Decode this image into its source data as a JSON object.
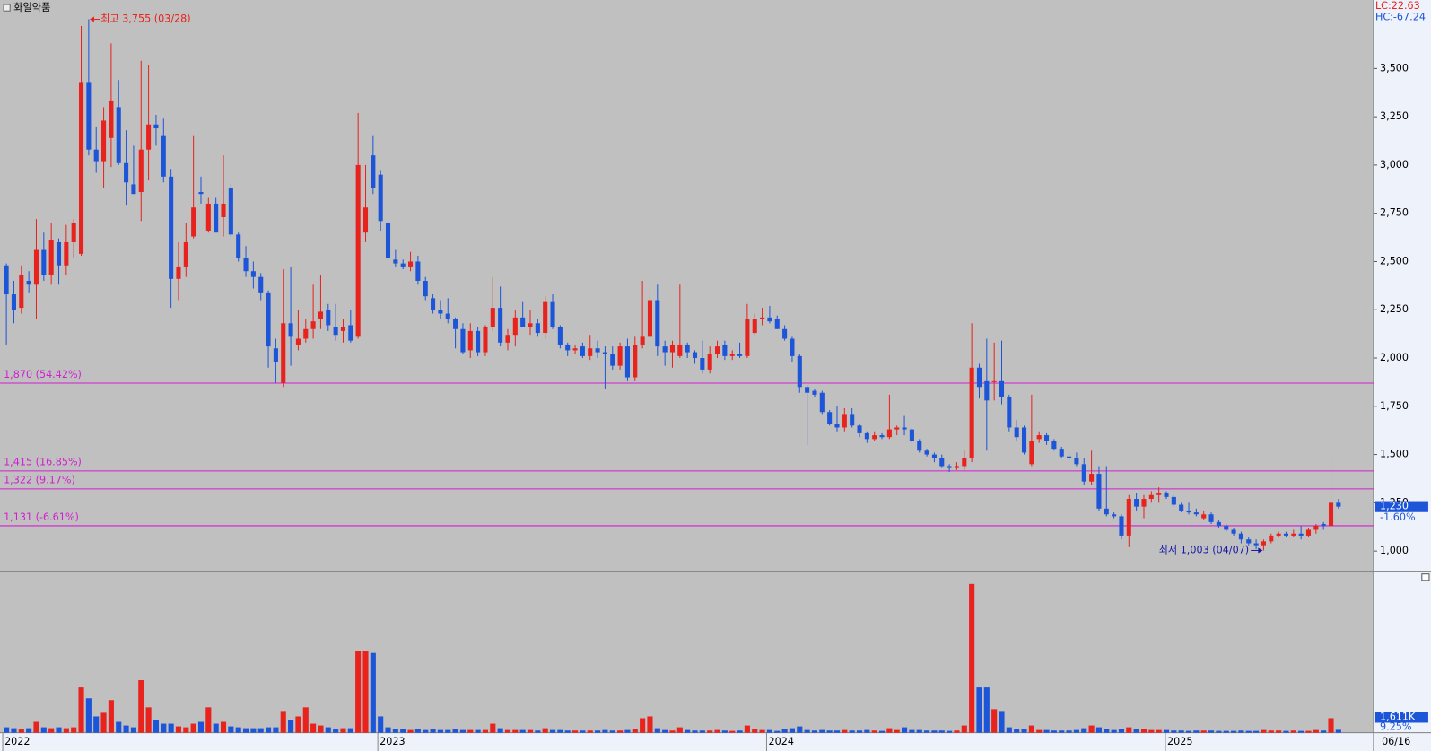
{
  "chart_data": {
    "type": "candlestick",
    "title": "화일약품",
    "indicators": [
      "LC:22.63",
      "HC:-67.24"
    ],
    "candles": [
      [
        2480,
        2490,
        2070,
        2330
      ],
      [
        2330,
        2400,
        2180,
        2250
      ],
      [
        2260,
        2480,
        2230,
        2430
      ],
      [
        2400,
        2450,
        2340,
        2380
      ],
      [
        2380,
        2720,
        2200,
        2560
      ],
      [
        2560,
        2650,
        2400,
        2430
      ],
      [
        2430,
        2700,
        2380,
        2610
      ],
      [
        2600,
        2620,
        2380,
        2480
      ],
      [
        2480,
        2690,
        2430,
        2600
      ],
      [
        2600,
        2720,
        2520,
        2700
      ],
      [
        2540,
        3720,
        2530,
        3430
      ],
      [
        3430,
        3755,
        3050,
        3080
      ],
      [
        3080,
        3200,
        2960,
        3020
      ],
      [
        3020,
        3300,
        2880,
        3230
      ],
      [
        3140,
        3630,
        2990,
        3330
      ],
      [
        3300,
        3440,
        3000,
        3010
      ],
      [
        3010,
        3180,
        2790,
        2910
      ],
      [
        2900,
        3100,
        2850,
        2850
      ],
      [
        2860,
        3540,
        2710,
        3080
      ],
      [
        3080,
        3520,
        2920,
        3210
      ],
      [
        3210,
        3260,
        3100,
        3190
      ],
      [
        3150,
        3240,
        2910,
        2940
      ],
      [
        2940,
        2980,
        2260,
        2410
      ],
      [
        2410,
        2600,
        2300,
        2470
      ],
      [
        2470,
        2700,
        2420,
        2600
      ],
      [
        2630,
        3150,
        2620,
        2780
      ],
      [
        2860,
        2940,
        2800,
        2850
      ],
      [
        2660,
        2830,
        2650,
        2800
      ],
      [
        2800,
        2830,
        2660,
        2650
      ],
      [
        2730,
        3050,
        2630,
        2800
      ],
      [
        2880,
        2900,
        2630,
        2640
      ],
      [
        2640,
        2650,
        2500,
        2520
      ],
      [
        2520,
        2580,
        2420,
        2450
      ],
      [
        2450,
        2500,
        2360,
        2420
      ],
      [
        2420,
        2440,
        2300,
        2340
      ],
      [
        2340,
        2350,
        1950,
        2060
      ],
      [
        2050,
        2100,
        1870,
        1980
      ],
      [
        1870,
        2460,
        1850,
        2180
      ],
      [
        2180,
        2470,
        1960,
        2110
      ],
      [
        2070,
        2250,
        2040,
        2100
      ],
      [
        2100,
        2200,
        2080,
        2150
      ],
      [
        2150,
        2380,
        2100,
        2190
      ],
      [
        2200,
        2430,
        2150,
        2240
      ],
      [
        2250,
        2280,
        2140,
        2170
      ],
      [
        2160,
        2280,
        2090,
        2120
      ],
      [
        2140,
        2200,
        2080,
        2160
      ],
      [
        2170,
        2250,
        2080,
        2090
      ],
      [
        2110,
        3270,
        2100,
        3000
      ],
      [
        2650,
        3000,
        2600,
        2780
      ],
      [
        3050,
        3150,
        2850,
        2880
      ],
      [
        2950,
        2970,
        2660,
        2710
      ],
      [
        2700,
        2720,
        2500,
        2520
      ],
      [
        2510,
        2560,
        2470,
        2490
      ],
      [
        2490,
        2510,
        2460,
        2470
      ],
      [
        2470,
        2550,
        2450,
        2500
      ],
      [
        2500,
        2530,
        2380,
        2400
      ],
      [
        2400,
        2420,
        2300,
        2320
      ],
      [
        2310,
        2330,
        2230,
        2250
      ],
      [
        2250,
        2300,
        2200,
        2230
      ],
      [
        2230,
        2310,
        2180,
        2200
      ],
      [
        2200,
        2210,
        2050,
        2150
      ],
      [
        2150,
        2180,
        2020,
        2030
      ],
      [
        2040,
        2180,
        2000,
        2140
      ],
      [
        2140,
        2160,
        2010,
        2030
      ],
      [
        2030,
        2170,
        2010,
        2160
      ],
      [
        2160,
        2420,
        2140,
        2260
      ],
      [
        2260,
        2370,
        2060,
        2080
      ],
      [
        2080,
        2150,
        2040,
        2120
      ],
      [
        2120,
        2250,
        2060,
        2210
      ],
      [
        2210,
        2290,
        2160,
        2160
      ],
      [
        2160,
        2250,
        2120,
        2180
      ],
      [
        2180,
        2200,
        2110,
        2130
      ],
      [
        2130,
        2320,
        2100,
        2290
      ],
      [
        2290,
        2330,
        2150,
        2160
      ],
      [
        2160,
        2170,
        2050,
        2070
      ],
      [
        2070,
        2080,
        2010,
        2040
      ],
      [
        2040,
        2070,
        2020,
        2050
      ],
      [
        2060,
        2080,
        2000,
        2010
      ],
      [
        2010,
        2120,
        1990,
        2050
      ],
      [
        2050,
        2090,
        2000,
        2030
      ],
      [
        2030,
        2060,
        1840,
        2020
      ],
      [
        2020,
        2060,
        1940,
        1960
      ],
      [
        1960,
        2080,
        1940,
        2060
      ],
      [
        2060,
        2100,
        1880,
        1900
      ],
      [
        1900,
        2110,
        1880,
        2070
      ],
      [
        2070,
        2400,
        2050,
        2110
      ],
      [
        2110,
        2370,
        2100,
        2300
      ],
      [
        2300,
        2380,
        2010,
        2060
      ],
      [
        2060,
        2090,
        1960,
        2030
      ],
      [
        2030,
        2090,
        1950,
        2070
      ],
      [
        2010,
        2380,
        2000,
        2070
      ],
      [
        2070,
        2080,
        2000,
        2030
      ],
      [
        2030,
        2040,
        1970,
        2000
      ],
      [
        2000,
        2090,
        1920,
        1940
      ],
      [
        1940,
        2060,
        1920,
        2020
      ],
      [
        2020,
        2090,
        2000,
        2060
      ],
      [
        2070,
        2090,
        1990,
        2010
      ],
      [
        2010,
        2040,
        1990,
        2020
      ],
      [
        2020,
        2080,
        2000,
        2010
      ],
      [
        2010,
        2280,
        2000,
        2200
      ],
      [
        2130,
        2230,
        2120,
        2200
      ],
      [
        2200,
        2260,
        2170,
        2210
      ],
      [
        2210,
        2270,
        2180,
        2190
      ],
      [
        2200,
        2220,
        2150,
        2150
      ],
      [
        2150,
        2170,
        2090,
        2100
      ],
      [
        2100,
        2110,
        1980,
        2010
      ],
      [
        2010,
        2020,
        1820,
        1850
      ],
      [
        1850,
        1860,
        1550,
        1820
      ],
      [
        1830,
        1840,
        1800,
        1810
      ],
      [
        1820,
        1830,
        1710,
        1720
      ],
      [
        1720,
        1730,
        1650,
        1660
      ],
      [
        1660,
        1750,
        1620,
        1640
      ],
      [
        1640,
        1740,
        1620,
        1710
      ],
      [
        1710,
        1740,
        1640,
        1650
      ],
      [
        1650,
        1660,
        1590,
        1610
      ],
      [
        1610,
        1620,
        1560,
        1580
      ],
      [
        1580,
        1620,
        1570,
        1600
      ],
      [
        1600,
        1610,
        1580,
        1590
      ],
      [
        1590,
        1810,
        1580,
        1630
      ],
      [
        1630,
        1650,
        1600,
        1640
      ],
      [
        1640,
        1700,
        1600,
        1630
      ],
      [
        1630,
        1640,
        1560,
        1570
      ],
      [
        1570,
        1580,
        1510,
        1520
      ],
      [
        1520,
        1530,
        1490,
        1500
      ],
      [
        1500,
        1510,
        1460,
        1480
      ],
      [
        1480,
        1500,
        1430,
        1440
      ],
      [
        1440,
        1450,
        1410,
        1430
      ],
      [
        1430,
        1460,
        1420,
        1440
      ],
      [
        1440,
        1520,
        1420,
        1480
      ],
      [
        1480,
        2180,
        1460,
        1950
      ],
      [
        1950,
        1970,
        1790,
        1850
      ],
      [
        1880,
        2100,
        1520,
        1780
      ],
      [
        1880,
        2080,
        1780,
        1880
      ],
      [
        1880,
        2090,
        1760,
        1800
      ],
      [
        1800,
        1810,
        1620,
        1640
      ],
      [
        1640,
        1680,
        1570,
        1590
      ],
      [
        1640,
        1650,
        1500,
        1510
      ],
      [
        1450,
        1810,
        1440,
        1570
      ],
      [
        1580,
        1620,
        1560,
        1600
      ],
      [
        1600,
        1610,
        1550,
        1570
      ],
      [
        1570,
        1580,
        1520,
        1530
      ],
      [
        1530,
        1540,
        1480,
        1490
      ],
      [
        1490,
        1510,
        1470,
        1480
      ],
      [
        1480,
        1510,
        1440,
        1450
      ],
      [
        1450,
        1480,
        1340,
        1360
      ],
      [
        1360,
        1520,
        1340,
        1400
      ],
      [
        1400,
        1440,
        1210,
        1220
      ],
      [
        1220,
        1440,
        1180,
        1190
      ],
      [
        1190,
        1200,
        1170,
        1180
      ],
      [
        1180,
        1190,
        1060,
        1080
      ],
      [
        1080,
        1290,
        1020,
        1270
      ],
      [
        1270,
        1300,
        1210,
        1230
      ],
      [
        1230,
        1290,
        1170,
        1270
      ],
      [
        1270,
        1310,
        1250,
        1290
      ],
      [
        1290,
        1330,
        1250,
        1300
      ],
      [
        1300,
        1310,
        1270,
        1280
      ],
      [
        1280,
        1290,
        1230,
        1240
      ],
      [
        1240,
        1250,
        1200,
        1210
      ],
      [
        1210,
        1250,
        1190,
        1200
      ],
      [
        1200,
        1220,
        1180,
        1190
      ],
      [
        1170,
        1210,
        1160,
        1190
      ],
      [
        1190,
        1200,
        1140,
        1150
      ],
      [
        1150,
        1160,
        1120,
        1130
      ],
      [
        1130,
        1140,
        1100,
        1110
      ],
      [
        1110,
        1120,
        1080,
        1090
      ],
      [
        1090,
        1100,
        1040,
        1060
      ],
      [
        1060,
        1070,
        1030,
        1040
      ],
      [
        1040,
        1060,
        1010,
        1030
      ],
      [
        1030,
        1060,
        1003,
        1050
      ],
      [
        1050,
        1090,
        1040,
        1080
      ],
      [
        1080,
        1100,
        1070,
        1090
      ],
      [
        1090,
        1100,
        1070,
        1080
      ],
      [
        1080,
        1110,
        1070,
        1090
      ],
      [
        1090,
        1130,
        1060,
        1080
      ],
      [
        1080,
        1120,
        1070,
        1110
      ],
      [
        1110,
        1140,
        1090,
        1130
      ],
      [
        1140,
        1150,
        1110,
        1130
      ],
      [
        1130,
        1470,
        1130,
        1250
      ],
      [
        1250,
        1270,
        1220,
        1230
      ]
    ],
    "volume": [
      3000,
      2500,
      2000,
      2500,
      6000,
      3000,
      2500,
      3000,
      2500,
      3000,
      25000,
      19000,
      9000,
      11000,
      18000,
      6000,
      4000,
      3000,
      29000,
      14000,
      7000,
      5000,
      5000,
      3500,
      3000,
      5000,
      6000,
      14000,
      5000,
      6000,
      3500,
      3000,
      2500,
      2500,
      2500,
      3000,
      3000,
      12000,
      7000,
      9000,
      14000,
      5000,
      4000,
      3000,
      2000,
      2500,
      2500,
      45000,
      45000,
      44000,
      9000,
      3000,
      2000,
      2000,
      1500,
      2000,
      1500,
      2000,
      1500,
      1500,
      2000,
      1500,
      1500,
      1500,
      1500,
      5000,
      2500,
      1500,
      1500,
      1500,
      1500,
      1200,
      2500,
      1500,
      1500,
      1200,
      1200,
      1200,
      1200,
      1200,
      1500,
      1200,
      1200,
      1500,
      2000,
      8000,
      9000,
      2500,
      1500,
      1200,
      3000,
      1500,
      1200,
      1200,
      1200,
      1500,
      1200,
      1000,
      1200,
      4000,
      2000,
      1500,
      1500,
      1000,
      2000,
      2500,
      3500,
      1500,
      1200,
      1500,
      1200,
      1200,
      1500,
      1200,
      1200,
      1500,
      1200,
      1000,
      2500,
      1500,
      3000,
      1500,
      1500,
      1200,
      1200,
      1200,
      1000,
      1200,
      4000,
      82000,
      25000,
      25000,
      13000,
      12000,
      3000,
      2000,
      2000,
      4000,
      1500,
      1500,
      1200,
      1200,
      1200,
      1500,
      2500,
      4000,
      3000,
      2000,
      1500,
      2000,
      3000,
      2000,
      2000,
      1500,
      1500,
      1500,
      1200,
      1200,
      1000,
      1200,
      1200,
      1200,
      1000,
      1000,
      1000,
      1200,
      1000,
      1000,
      1500,
      1200,
      1200,
      1000,
      1200,
      1000,
      1000,
      1500,
      1200,
      8000,
      1611
    ],
    "ylim": [
      900,
      3855
    ],
    "yticks": [
      {
        "value": 1000,
        "label": "1,000"
      },
      {
        "value": 1250,
        "label": "1,250"
      },
      {
        "value": 1500,
        "label": "1,500"
      },
      {
        "value": 1750,
        "label": "1,750"
      },
      {
        "value": 2000,
        "label": "2,000"
      },
      {
        "value": 2250,
        "label": "2,250"
      },
      {
        "value": 2500,
        "label": "2,500"
      },
      {
        "value": 2750,
        "label": "2,750"
      },
      {
        "value": 3000,
        "label": "3,000"
      },
      {
        "value": 3250,
        "label": "3,250"
      },
      {
        "value": 3500,
        "label": "3,500"
      }
    ],
    "volume_ylim": [
      0,
      87000
    ],
    "colors": {
      "up": "#e8221c",
      "down": "#1c55d8",
      "level": "#d21ed2"
    },
    "levels": [
      {
        "value": 1870,
        "label": "1,870 (54.42%)"
      },
      {
        "value": 1415,
        "label": "1,415 (16.85%)"
      },
      {
        "value": 1322,
        "label": "1,322 (9.17%)"
      },
      {
        "value": 1131,
        "label": "1,131 (-6.61%)"
      }
    ],
    "annotations": [
      {
        "value": 3755,
        "label": "최고 3,755 (03/28)"
      },
      {
        "value": 1003,
        "label": "최저 1,003 (04/07)"
      }
    ],
    "last": {
      "price": {
        "value": 1230,
        "label": "1,230"
      },
      "change": "-1.60%",
      "volume": {
        "value": 1611,
        "label": "1,611K"
      },
      "volume_change": "9.25%"
    },
    "xlabels": [
      "2022",
      "2023",
      "2024",
      "2025",
      "06/16"
    ]
  }
}
